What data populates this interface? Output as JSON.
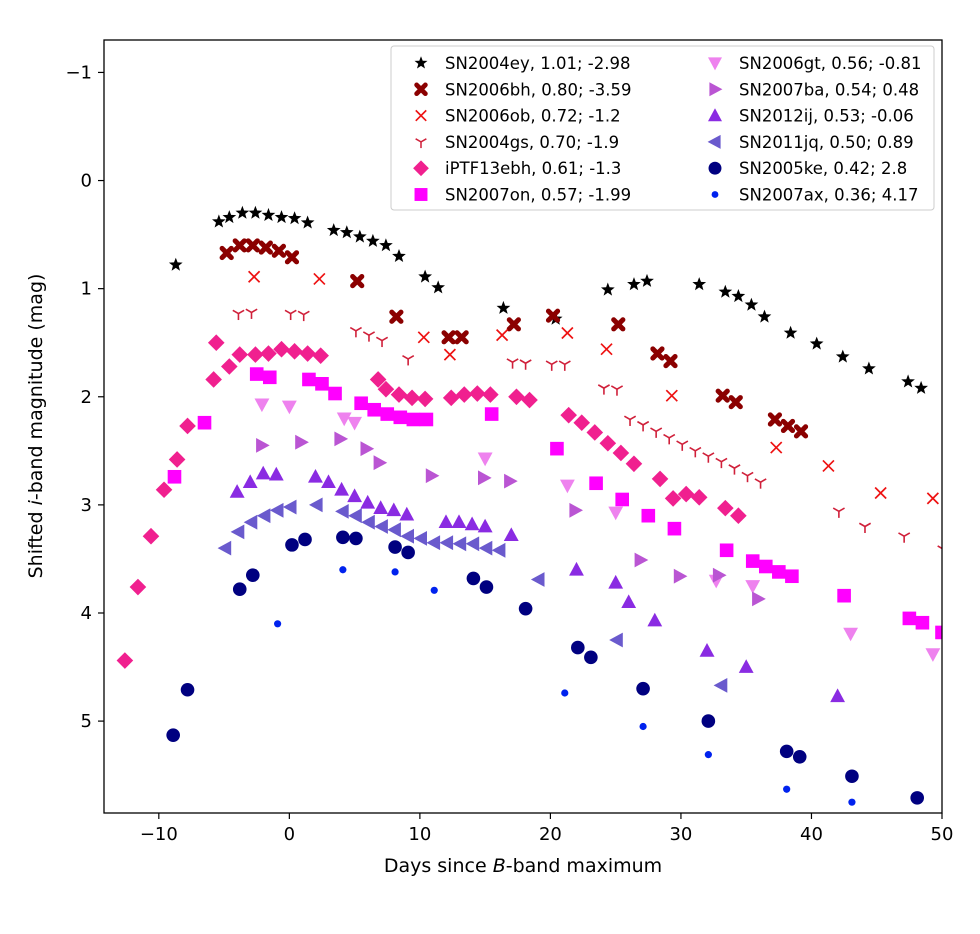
{
  "chart_data": {
    "type": "scatter",
    "xlabel_parts": [
      "Days since ",
      "B",
      "-band maximum"
    ],
    "ylabel_parts": [
      "Shifted ",
      "i",
      "-band magnitude (mag)"
    ],
    "xlim": [
      -14.2,
      50
    ],
    "ylim": [
      5.85,
      -1.3
    ],
    "y_inverted": true,
    "x_ticks": [
      -10,
      0,
      10,
      20,
      30,
      40,
      50
    ],
    "x_tick_labels": [
      "−10",
      "0",
      "10",
      "20",
      "30",
      "40",
      "50"
    ],
    "y_ticks": [
      -1,
      0,
      1,
      2,
      3,
      4,
      5
    ],
    "y_tick_labels": [
      "−1",
      "0",
      "1",
      "2",
      "3",
      "4",
      "5"
    ],
    "legend_position": "top-right",
    "series": [
      {
        "name": "SN2004ey, 1.01; -2.98",
        "marker": "star",
        "color": "#000000",
        "x": [
          -8.7,
          -5.4,
          -4.6,
          -3.6,
          -2.6,
          -1.6,
          -0.6,
          0.4,
          1.4,
          3.4,
          4.4,
          5.4,
          6.4,
          7.4,
          8.4,
          10.4,
          11.4,
          16.4,
          20.4,
          24.4,
          26.4,
          27.4,
          31.4,
          33.4,
          34.4,
          35.4,
          36.4,
          38.4,
          40.4,
          42.4,
          44.4,
          47.4,
          48.4
        ],
        "y": [
          0.78,
          0.38,
          0.34,
          0.3,
          0.3,
          0.32,
          0.34,
          0.35,
          0.39,
          0.46,
          0.48,
          0.52,
          0.56,
          0.6,
          0.7,
          0.89,
          0.99,
          1.18,
          1.28,
          1.01,
          0.96,
          0.93,
          0.96,
          1.03,
          1.07,
          1.15,
          1.26,
          1.41,
          1.51,
          1.63,
          1.74,
          1.86,
          1.92
        ]
      },
      {
        "name": "SN2006bh, 0.80; -3.59",
        "marker": "cross",
        "color": "#8b0000",
        "x": [
          -4.8,
          -3.8,
          -2.8,
          -1.8,
          -0.8,
          0.2,
          5.2,
          8.2,
          12.2,
          13.2,
          17.2,
          20.2,
          25.2,
          28.2,
          29.2,
          33.2,
          34.2,
          37.2,
          38.2,
          39.2
        ],
        "y": [
          0.67,
          0.6,
          0.6,
          0.62,
          0.65,
          0.71,
          0.93,
          1.26,
          1.45,
          1.45,
          1.33,
          1.25,
          1.33,
          1.6,
          1.67,
          1.99,
          2.05,
          2.21,
          2.27,
          2.32
        ]
      },
      {
        "name": "SN2006ob, 0.72; -1.2",
        "marker": "x",
        "color": "#ee1111",
        "x": [
          -2.7,
          2.3,
          10.3,
          12.3,
          16.3,
          21.3,
          24.3,
          29.3,
          37.3,
          41.3,
          45.3,
          49.3
        ],
        "y": [
          0.89,
          0.91,
          1.45,
          1.61,
          1.43,
          1.41,
          1.56,
          1.99,
          2.47,
          2.64,
          2.89,
          2.94
        ]
      },
      {
        "name": "SN2004gs, 0.70; -1.9",
        "marker": "tri",
        "color": "#d0203a",
        "x": [
          -3.9,
          -2.9,
          0.1,
          1.1,
          5.1,
          6.1,
          7.1,
          9.1,
          17.1,
          18.1,
          20.1,
          21.1,
          24.1,
          25.1,
          26.1,
          27.1,
          28.1,
          29.1,
          30.1,
          31.1,
          32.1,
          33.1,
          34.1,
          35.1,
          36.1,
          42.1,
          44.1,
          47.1,
          50.1
        ],
        "y": [
          1.23,
          1.22,
          1.23,
          1.24,
          1.39,
          1.43,
          1.48,
          1.65,
          1.68,
          1.69,
          1.7,
          1.7,
          1.92,
          1.93,
          2.21,
          2.26,
          2.32,
          2.38,
          2.44,
          2.5,
          2.55,
          2.6,
          2.66,
          2.73,
          2.79,
          3.06,
          3.2,
          3.29,
          3.41
        ]
      },
      {
        "name": "iPTF13ebh, 0.61; -1.3",
        "marker": "diamond",
        "color": "#f0208f",
        "x": [
          -12.6,
          -11.6,
          -10.6,
          -9.6,
          -8.6,
          -7.8,
          -5.8,
          -5.6,
          -4.6,
          -3.8,
          -2.6,
          -1.6,
          -0.6,
          0.4,
          1.4,
          2.4,
          6.8,
          7.4,
          8.4,
          9.4,
          10.4,
          12.4,
          13.4,
          14.4,
          15.4,
          17.4,
          18.4,
          21.4,
          22.4,
          23.4,
          24.4,
          25.4,
          26.4,
          28.4,
          29.4,
          30.4,
          31.4,
          33.4,
          34.4
        ],
        "y": [
          4.44,
          3.76,
          3.29,
          2.86,
          2.58,
          2.27,
          1.84,
          1.5,
          1.72,
          1.61,
          1.61,
          1.6,
          1.56,
          1.58,
          1.6,
          1.62,
          1.84,
          1.93,
          1.98,
          2.01,
          2.02,
          2.01,
          1.98,
          1.97,
          1.98,
          2.0,
          2.03,
          2.17,
          2.24,
          2.33,
          2.43,
          2.52,
          2.62,
          2.76,
          2.94,
          2.9,
          2.93,
          3.03,
          3.1
        ]
      },
      {
        "name": "SN2007on, 0.57; -1.99",
        "marker": "square",
        "color": "#ff00ff",
        "x": [
          -8.8,
          -6.5,
          -2.5,
          -1.5,
          1.5,
          2.5,
          3.5,
          5.5,
          6.5,
          7.5,
          8.5,
          9.5,
          10.5,
          15.5,
          20.5,
          23.5,
          25.5,
          27.5,
          29.5,
          33.5,
          35.5,
          36.5,
          37.5,
          38.5,
          42.5,
          47.5,
          48.5,
          50.0
        ],
        "y": [
          2.74,
          2.24,
          1.79,
          1.82,
          1.84,
          1.88,
          1.97,
          2.06,
          2.12,
          2.16,
          2.19,
          2.21,
          2.21,
          2.16,
          2.48,
          2.8,
          2.95,
          3.1,
          3.22,
          3.42,
          3.52,
          3.57,
          3.62,
          3.66,
          3.84,
          4.05,
          4.09,
          4.18
        ]
      },
      {
        "name": "SN2006gt, 0.56; -0.81",
        "marker": "tri_down",
        "color": "#ee82ee",
        "x": [
          -2.1,
          0.0,
          4.2,
          5.0,
          15.0,
          21.3,
          25.0,
          32.7,
          35.5,
          43.0,
          49.3
        ],
        "y": [
          2.07,
          2.09,
          2.2,
          2.24,
          2.57,
          2.82,
          3.07,
          3.7,
          3.75,
          4.19,
          4.38
        ]
      },
      {
        "name": "SN2007ba, 0.54; 0.48",
        "marker": "tri_right",
        "color": "#ba55d3",
        "x": [
          -2.1,
          0.9,
          3.9,
          5.9,
          6.9,
          10.9,
          14.9,
          16.9,
          21.9,
          26.9,
          29.9,
          32.9,
          35.9
        ],
        "y": [
          2.45,
          2.42,
          2.39,
          2.48,
          2.61,
          2.73,
          2.75,
          2.78,
          3.05,
          3.51,
          3.66,
          3.65,
          3.87
        ]
      },
      {
        "name": "SN2012ij, 0.53; -0.06",
        "marker": "tri_up",
        "color": "#8a2be2",
        "x": [
          -4.0,
          -3.0,
          -2.0,
          -1.0,
          2.0,
          3.0,
          4.0,
          5.0,
          6.0,
          7.0,
          8.0,
          9.0,
          12.0,
          13.0,
          14.0,
          15.0,
          17.0,
          22.0,
          25.0,
          26.0,
          28.0,
          32.0,
          35.0,
          42.0
        ],
        "y": [
          2.88,
          2.79,
          2.71,
          2.72,
          2.74,
          2.79,
          2.86,
          2.92,
          2.98,
          3.03,
          3.05,
          3.09,
          3.16,
          3.16,
          3.18,
          3.2,
          3.28,
          3.6,
          3.72,
          3.9,
          4.07,
          4.35,
          4.5,
          4.77
        ]
      },
      {
        "name": "SN2011jq, 0.50; 0.89",
        "marker": "tri_left",
        "color": "#6a5acd",
        "x": [
          -4.9,
          -3.9,
          -2.9,
          -1.9,
          -0.9,
          0.1,
          2.1,
          4.1,
          5.1,
          6.1,
          7.1,
          8.1,
          9.1,
          10.1,
          11.1,
          12.1,
          13.1,
          14.1,
          15.1,
          16.1,
          19.1,
          25.1,
          33.1
        ],
        "y": [
          3.4,
          3.25,
          3.16,
          3.1,
          3.05,
          3.02,
          3.0,
          3.06,
          3.1,
          3.16,
          3.2,
          3.23,
          3.29,
          3.31,
          3.35,
          3.35,
          3.36,
          3.36,
          3.4,
          3.42,
          3.69,
          4.25,
          4.67
        ]
      },
      {
        "name": "SN2005ke, 0.42; 2.8",
        "marker": "circle",
        "color": "#000080",
        "x": [
          -8.9,
          -7.8,
          -3.8,
          -2.8,
          0.2,
          1.2,
          4.1,
          5.1,
          8.1,
          9.1,
          14.1,
          15.1,
          18.1,
          22.1,
          23.1,
          27.1,
          32.1,
          38.1,
          39.1,
          43.1,
          48.1
        ],
        "y": [
          5.13,
          4.71,
          3.78,
          3.65,
          3.37,
          3.32,
          3.3,
          3.31,
          3.39,
          3.44,
          3.68,
          3.76,
          3.96,
          4.32,
          4.41,
          4.7,
          5.0,
          5.28,
          5.33,
          5.51,
          5.71
        ]
      },
      {
        "name": "SN2007ax, 0.36; 4.17",
        "marker": "dot",
        "color": "#0022ee",
        "x": [
          -0.9,
          4.1,
          8.1,
          11.1,
          21.1,
          27.1,
          32.1,
          38.1,
          43.1
        ],
        "y": [
          4.1,
          3.6,
          3.62,
          3.79,
          4.74,
          5.05,
          5.31,
          5.63,
          5.75
        ]
      }
    ]
  }
}
